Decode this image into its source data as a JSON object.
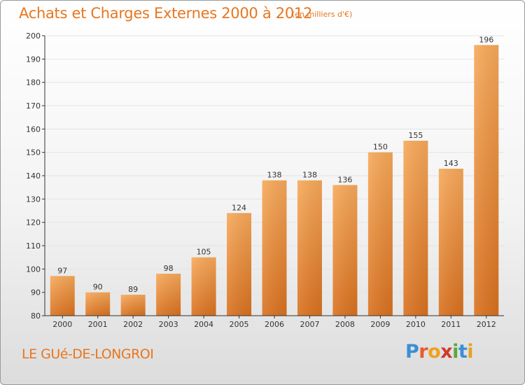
{
  "header": {
    "title": "Achats et Charges Externes 2000 à 2012",
    "subtitle": "(en milliers d'€)"
  },
  "footer": {
    "place": "LE GUé-DE-LONGROI",
    "logo_letters": [
      "P",
      "r",
      "o",
      "x",
      "i",
      "t",
      "i"
    ]
  },
  "colors": {
    "accent": "#e8761f",
    "bar_top": "#f7a95a",
    "bar_bottom": "#d9711f",
    "gridline": "#e4e4e4",
    "axis": "#333333"
  },
  "chart_data": {
    "type": "bar",
    "title": "Achats et Charges Externes 2000 à 2012",
    "subtitle": "(en milliers d'€)",
    "xlabel": "",
    "ylabel": "",
    "categories": [
      "2000",
      "2001",
      "2002",
      "2003",
      "2004",
      "2005",
      "2006",
      "2007",
      "2008",
      "2009",
      "2010",
      "2011",
      "2012"
    ],
    "values": [
      97,
      90,
      89,
      98,
      105,
      124,
      138,
      138,
      136,
      150,
      155,
      143,
      196
    ],
    "ylim": [
      80,
      200
    ],
    "yticks": [
      80,
      90,
      100,
      110,
      120,
      130,
      140,
      150,
      160,
      170,
      180,
      190,
      200
    ],
    "grid": true,
    "legend": "none"
  }
}
